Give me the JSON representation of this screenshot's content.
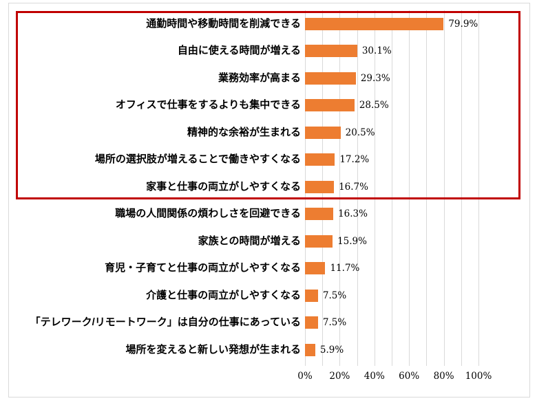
{
  "chart_data": {
    "type": "bar",
    "orientation": "horizontal",
    "title": "",
    "xlabel": "",
    "ylabel": "",
    "xlim": [
      0,
      100
    ],
    "grid": "vertical-minor-every-10pct",
    "legend": "none",
    "categories": [
      "通勤時間や移動時間を削減できる",
      "自由に使える時間が増える",
      "業務効率が高まる",
      "オフィスで仕事をするよりも集中できる",
      "精神的な余裕が生まれる",
      "場所の選択肢が増えることで働きやすくなる",
      "家事と仕事の両立がしやすくなる",
      "職場の人間関係の煩わしさを回避できる",
      "家族との時間が増える",
      "育児・子育てと仕事の両立がしやすくなる",
      "介護と仕事の両立がしやすくなる",
      "「テレワーク/リモートワーク」は自分の仕事にあっている",
      "場所を変えると新しい発想が生まれる"
    ],
    "values": [
      79.9,
      30.1,
      29.3,
      28.5,
      20.5,
      17.2,
      16.7,
      16.3,
      15.9,
      11.7,
      7.5,
      7.5,
      5.9
    ],
    "value_labels": [
      "79.9%",
      "30.1%",
      "29.3%",
      "28.5%",
      "20.5%",
      "17.2%",
      "16.7%",
      "16.3%",
      "15.9%",
      "11.7%",
      "7.5%",
      "7.5%",
      "5.9%"
    ],
    "x_ticks": [
      "0%",
      "20%",
      "40%",
      "60%",
      "80%",
      "100%"
    ],
    "x_tick_values": [
      0,
      20,
      40,
      60,
      80,
      100
    ],
    "gridline_percents": [
      0,
      10,
      20,
      30,
      40,
      50,
      60,
      70,
      80,
      90,
      100
    ],
    "bar_color": "#ED7D31",
    "highlight_box_color": "#C00000",
    "highlighted_categories_count": 7
  },
  "colors": {
    "chart_border": "#D9D9D9",
    "gridline": "#D9D9D9",
    "label_text": "#000000",
    "background": "#FFFFFF"
  }
}
